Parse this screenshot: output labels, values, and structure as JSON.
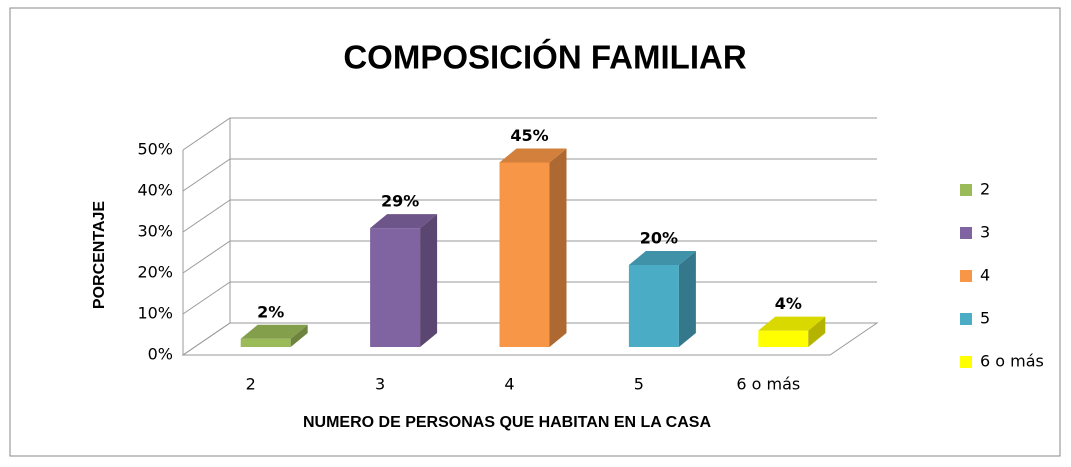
{
  "chart_data": {
    "type": "bar",
    "title": "COMPOSICIÓN FAMILIAR",
    "xlabel": "NUMERO DE PERSONAS QUE HABITAN EN LA CASA",
    "ylabel": "PORCENTAJE",
    "categories": [
      "2",
      "3",
      "4",
      "5",
      "6 o más"
    ],
    "values": [
      2,
      29,
      45,
      20,
      4
    ],
    "value_labels": [
      "2%",
      "29%",
      "45%",
      "20%",
      "4%"
    ],
    "colors": [
      "#9bbb59",
      "#8064a2",
      "#f79646",
      "#4bacc6",
      "#ffff00"
    ],
    "ylim": [
      0,
      50
    ],
    "yticks": [
      {
        "value": 0,
        "label": "0%"
      },
      {
        "value": 10,
        "label": "10%"
      },
      {
        "value": 20,
        "label": "20%"
      },
      {
        "value": 30,
        "label": "30%"
      },
      {
        "value": 40,
        "label": "40%"
      },
      {
        "value": 50,
        "label": "50%"
      }
    ],
    "grid": true,
    "legend": "right"
  }
}
